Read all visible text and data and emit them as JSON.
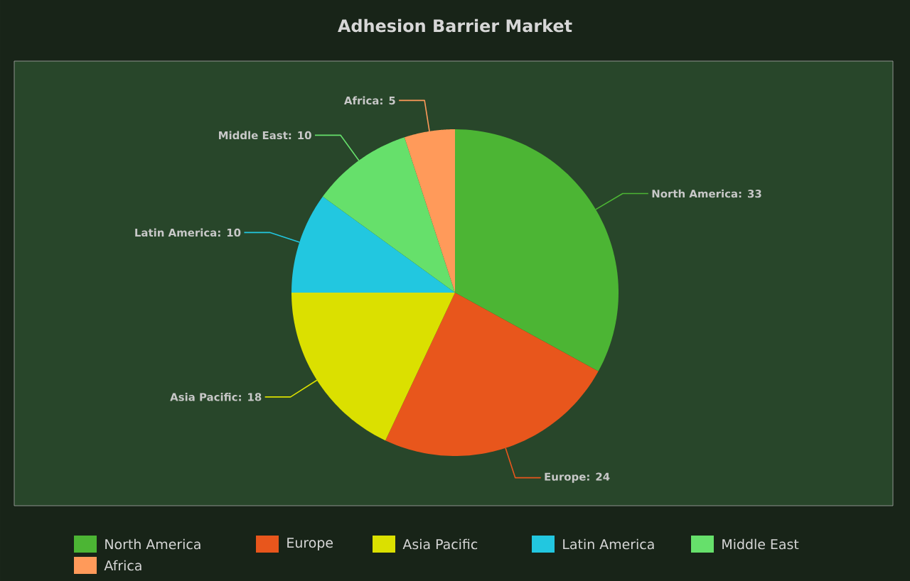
{
  "chart_data": {
    "type": "pie",
    "title": "Adhesion Barrier Market",
    "categories": [
      "North America",
      "Europe",
      "Asia Pacific",
      "Latin America",
      "Middle East",
      "Africa"
    ],
    "values": [
      33,
      24,
      18,
      10,
      10,
      5
    ],
    "colors": [
      "#4cb534",
      "#e8561c",
      "#dbe000",
      "#22c7e0",
      "#66e06b",
      "#ff9a5a"
    ],
    "value_labels": [
      "North America: 33",
      "Europe: 24",
      "Asia Pacific: 18",
      "Latin America: 10",
      "Middle East: 10",
      "Africa: 5"
    ],
    "legend": "bottom"
  }
}
